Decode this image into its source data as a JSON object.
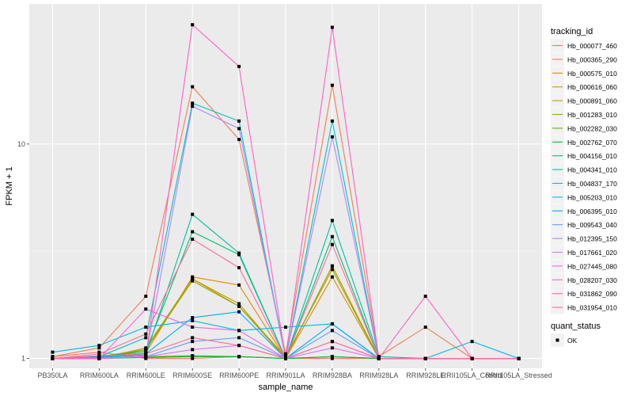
{
  "chart_data": {
    "type": "line",
    "xlabel": "sample_name",
    "ylabel": "FPKM + 1",
    "y_scale": "log10",
    "ylim": [
      0.9,
      45
    ],
    "y_ticks": [
      1,
      10
    ],
    "y_tick_labels": [
      "1",
      "10"
    ],
    "categories": [
      "PB350LA",
      "RRIM600LA",
      "RRIM600LE",
      "RRIM600SE",
      "RRIM600PE",
      "RRIM901LA",
      "RRIM928BA",
      "RRIM928LA",
      "RRIM928LE",
      "RRII105LA_Control",
      "RRII105LA_Stressed"
    ],
    "legend_color_title": "tracking_id",
    "legend_shape_title": "quant_status",
    "legend_shape_label": "OK",
    "series": [
      {
        "name": "Hb_000077_460",
        "color": "#F8766D",
        "values": [
          1.02,
          1.07,
          1.0,
          1.0,
          1.02,
          1.0,
          1.0,
          1.0,
          1.0,
          1.0,
          1.0
        ]
      },
      {
        "name": "Hb_000365_290",
        "color": "#F07F52",
        "values": [
          1.02,
          1.12,
          1.95,
          18.5,
          10.5,
          1.05,
          18.8,
          1.02,
          1.4,
          1.0,
          1.0
        ]
      },
      {
        "name": "Hb_000575_010",
        "color": "#E38900",
        "values": [
          1.0,
          1.03,
          1.06,
          2.4,
          2.2,
          1.0,
          2.4,
          1.0,
          1.0,
          1.0,
          1.0
        ]
      },
      {
        "name": "Hb_000616_060",
        "color": "#D09400",
        "values": [
          1.0,
          1.0,
          1.1,
          2.35,
          1.75,
          1.0,
          2.7,
          1.0,
          1.0,
          1.0,
          1.0
        ]
      },
      {
        "name": "Hb_000891_060",
        "color": "#B79F00",
        "values": [
          1.0,
          1.0,
          1.12,
          2.35,
          1.8,
          1.0,
          2.7,
          1.0,
          1.0,
          1.0,
          1.0
        ]
      },
      {
        "name": "Hb_001283_010",
        "color": "#93AA00",
        "values": [
          1.0,
          1.02,
          1.1,
          2.3,
          1.75,
          1.02,
          2.6,
          1.0,
          1.0,
          1.0,
          1.0
        ]
      },
      {
        "name": "Hb_002282_030",
        "color": "#5EB300",
        "values": [
          1.0,
          1.0,
          1.02,
          1.03,
          1.02,
          1.0,
          1.02,
          1.0,
          1.0,
          1.0,
          1.0
        ]
      },
      {
        "name": "Hb_002762_070",
        "color": "#00BA38",
        "values": [
          1.0,
          1.0,
          1.01,
          1.02,
          1.02,
          1.0,
          1.02,
          1.0,
          1.0,
          1.0,
          1.0
        ]
      },
      {
        "name": "Hb_004156_010",
        "color": "#00BF74",
        "values": [
          1.0,
          1.02,
          1.08,
          3.9,
          3.05,
          1.0,
          3.7,
          1.0,
          1.0,
          1.0,
          1.0
        ]
      },
      {
        "name": "Hb_004341_010",
        "color": "#00C19F",
        "values": [
          1.0,
          1.01,
          1.04,
          4.7,
          3.1,
          1.0,
          4.4,
          1.02,
          1.0,
          1.0,
          1.0
        ]
      },
      {
        "name": "Hb_004837_170",
        "color": "#00BFC4",
        "values": [
          1.0,
          1.02,
          1.25,
          15.5,
          12.8,
          1.0,
          12.8,
          1.0,
          1.0,
          1.0,
          1.0
        ]
      },
      {
        "name": "Hb_005203_010",
        "color": "#00B8E7",
        "values": [
          1.07,
          1.15,
          1.4,
          1.5,
          1.35,
          1.4,
          1.45,
          1.0,
          1.0,
          1.2,
          1.0
        ]
      },
      {
        "name": "Hb_006395_010",
        "color": "#00A9FF",
        "values": [
          1.0,
          1.02,
          1.05,
          1.55,
          1.65,
          1.0,
          1.45,
          1.0,
          1.0,
          1.0,
          1.0
        ]
      },
      {
        "name": "Hb_009543_040",
        "color": "#619CFF",
        "values": [
          1.0,
          1.01,
          1.02,
          1.2,
          1.25,
          1.0,
          1.35,
          1.0,
          1.0,
          1.0,
          1.0
        ]
      },
      {
        "name": "Hb_012395_150",
        "color": "#AE87FF",
        "values": [
          1.0,
          1.0,
          1.03,
          15.0,
          11.8,
          1.0,
          10.8,
          1.0,
          1.0,
          1.0,
          1.0
        ]
      },
      {
        "name": "Hb_017661_020",
        "color": "#DB72FB",
        "values": [
          1.0,
          1.0,
          1.02,
          1.1,
          1.15,
          1.0,
          1.12,
          1.0,
          1.0,
          1.0,
          1.0
        ]
      },
      {
        "name": "Hb_027445_080",
        "color": "#F564E3",
        "values": [
          1.0,
          1.0,
          1.7,
          1.4,
          1.35,
          1.0,
          1.2,
          1.0,
          1.0,
          1.0,
          1.0
        ]
      },
      {
        "name": "Hb_028207_030",
        "color": "#FF61C3",
        "values": [
          1.0,
          1.0,
          1.02,
          36,
          23,
          1.0,
          35,
          1.0,
          1.95,
          1.0,
          1.0
        ]
      },
      {
        "name": "Hb_031862_090",
        "color": "#FF6C91",
        "values": [
          1.0,
          1.03,
          1.05,
          1.25,
          1.15,
          1.0,
          1.2,
          1.0,
          1.0,
          1.0,
          1.0
        ]
      },
      {
        "name": "Hb_031954_010",
        "color": "#FF6A98",
        "values": [
          1.0,
          1.05,
          1.3,
          3.6,
          2.65,
          1.0,
          3.4,
          1.0,
          1.0,
          1.0,
          1.0
        ]
      }
    ]
  }
}
